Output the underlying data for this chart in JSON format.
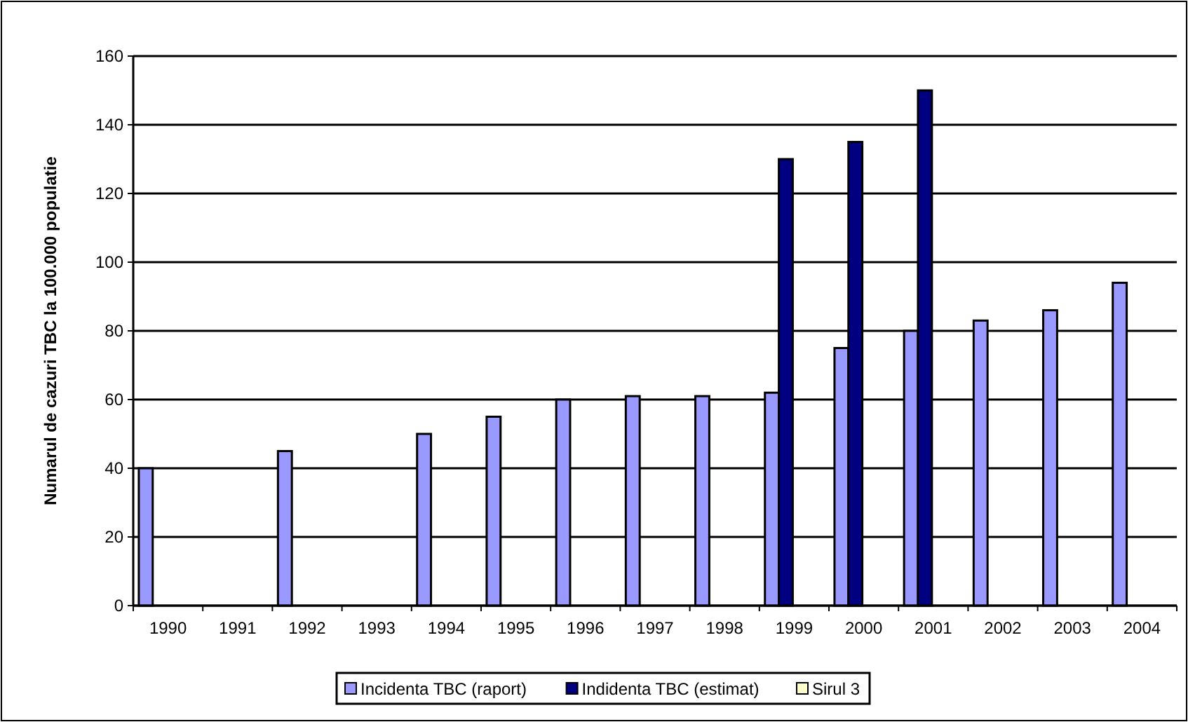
{
  "chart_data": {
    "type": "bar",
    "ylabel": "Numarul de cazuri TBC la 100.000 populatie",
    "categories": [
      "1990",
      "1991",
      "1992",
      "1993",
      "1994",
      "1995",
      "1996",
      "1997",
      "1998",
      "1999",
      "2000",
      "2001",
      "2002",
      "2003",
      "2004"
    ],
    "series": [
      {
        "name": "Incidenta TBC (raport)",
        "color": "#9999ff",
        "values": [
          40,
          null,
          45,
          null,
          50,
          55,
          60,
          61,
          61,
          62,
          75,
          80,
          83,
          86,
          94
        ]
      },
      {
        "name": "Indidenta TBC (estimat)",
        "color": "#000080",
        "values": [
          null,
          null,
          null,
          null,
          null,
          null,
          null,
          null,
          null,
          130,
          135,
          150,
          null,
          null,
          null
        ]
      },
      {
        "name": "Sirul 3",
        "color": "#ffffcc",
        "values": [
          null,
          null,
          null,
          null,
          null,
          null,
          null,
          null,
          null,
          null,
          null,
          null,
          null,
          null,
          null
        ]
      }
    ],
    "ylim": [
      0,
      160
    ],
    "yticks": [
      0,
      20,
      40,
      60,
      80,
      100,
      120,
      140,
      160
    ],
    "grid": "y",
    "legend": "bottom"
  }
}
